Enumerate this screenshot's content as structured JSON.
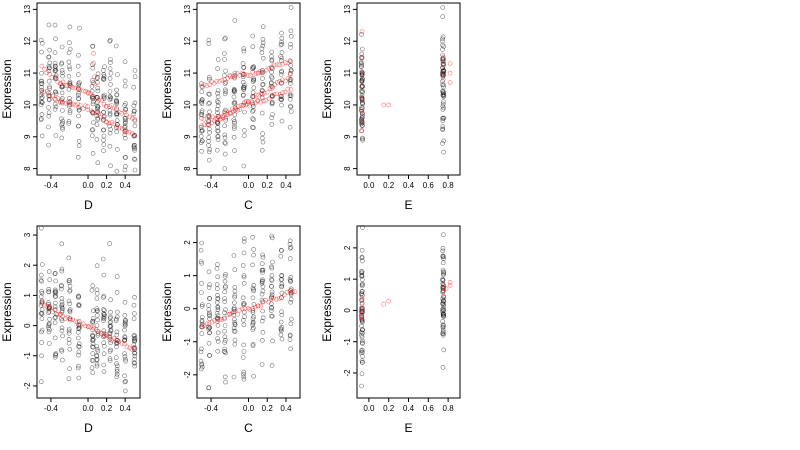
{
  "chart_data": [
    {
      "type": "scatter",
      "xlabel": "D",
      "ylabel": "Expression",
      "xlim": [
        -0.55,
        0.56
      ],
      "ylim": [
        7.8,
        13.2
      ],
      "xticks": [
        -0.4,
        0.0,
        0.2,
        0.4
      ],
      "xtick_labels": [
        "-0.4",
        "0.0",
        "0.2",
        "0.4"
      ],
      "yticks": [
        8,
        9,
        10,
        11,
        12,
        13
      ],
      "ytick_labels": [
        "8",
        "9",
        "10",
        "11",
        "12",
        "13"
      ],
      "series": [
        {
          "color": "#000000",
          "style": "open-circle",
          "x_columns": [
            -0.5,
            -0.42,
            -0.35,
            -0.28,
            -0.2,
            -0.1,
            0.05,
            0.1,
            0.17,
            0.24,
            0.31,
            0.4,
            0.5
          ],
          "y_center": [
            10.9,
            10.8,
            10.6,
            10.4,
            10.3,
            10.2,
            10.2,
            10.0,
            9.9,
            9.8,
            9.6,
            9.4,
            9.3
          ],
          "spread": 1.1,
          "points_per_column": 22
        },
        {
          "color": "#ff0000",
          "style": "open-circle",
          "curves": [
            [
              [
                -0.5,
                11.2
              ],
              [
                -0.3,
                10.7
              ],
              [
                0.0,
                10.4
              ],
              [
                0.2,
                10.0
              ],
              [
                0.5,
                9.6
              ]
            ],
            [
              [
                -0.5,
                10.5
              ],
              [
                -0.3,
                10.1
              ],
              [
                0.0,
                9.9
              ],
              [
                0.2,
                9.5
              ],
              [
                0.5,
                9.0
              ]
            ],
            [
              [
                0.06,
                11.6
              ],
              [
                0.07,
                10.6
              ]
            ]
          ]
        }
      ]
    },
    {
      "type": "scatter",
      "xlabel": "C",
      "ylabel": "Expression",
      "xlim": [
        -0.55,
        0.55
      ],
      "ylim": [
        7.8,
        13.2
      ],
      "xticks": [
        -0.4,
        0.0,
        0.2,
        0.4
      ],
      "xtick_labels": [
        "-0.4",
        "0.0",
        "0.2",
        "0.4"
      ],
      "yticks": [
        8,
        9,
        10,
        11,
        12,
        13
      ],
      "ytick_labels": [
        "8",
        "9",
        "10",
        "11",
        "12",
        "13"
      ],
      "series": [
        {
          "color": "#000000",
          "style": "open-circle",
          "x_columns": [
            -0.5,
            -0.42,
            -0.33,
            -0.25,
            -0.15,
            -0.05,
            0.05,
            0.15,
            0.25,
            0.35,
            0.45
          ],
          "y_center": [
            9.5,
            9.8,
            10.0,
            10.1,
            10.2,
            10.3,
            10.4,
            10.6,
            10.7,
            10.9,
            11.0
          ],
          "spread": 1.1,
          "points_per_column": 22
        },
        {
          "color": "#ff0000",
          "style": "open-circle",
          "curves": [
            [
              [
                -0.5,
                10.6
              ],
              [
                -0.2,
                10.9
              ],
              [
                0.1,
                11.0
              ],
              [
                0.45,
                11.4
              ]
            ],
            [
              [
                -0.5,
                9.3
              ],
              [
                -0.2,
                9.8
              ],
              [
                0.1,
                10.1
              ],
              [
                0.45,
                10.5
              ]
            ],
            [
              [
                -0.5,
                9.6
              ],
              [
                -0.3,
                9.6
              ],
              [
                0.0,
                10.1
              ],
              [
                0.45,
                10.9
              ]
            ]
          ]
        }
      ]
    },
    {
      "type": "scatter",
      "xlabel": "E",
      "ylabel": "Expression",
      "xlim": [
        -0.12,
        0.92
      ],
      "ylim": [
        7.8,
        13.2
      ],
      "xticks": [
        0.0,
        0.2,
        0.4,
        0.6,
        0.8
      ],
      "xtick_labels": [
        "0.0",
        "0.2",
        "0.4",
        "0.6",
        "0.8"
      ],
      "yticks": [
        8,
        9,
        10,
        11,
        12,
        13
      ],
      "ytick_labels": [
        "8",
        "9",
        "10",
        "11",
        "12",
        "13"
      ],
      "series": [
        {
          "color": "#000000",
          "style": "open-circle",
          "x_columns": [
            -0.07,
            0.75
          ],
          "y_center": [
            10.4,
            11.0
          ],
          "spread": 1.3,
          "points_per_column": 60
        },
        {
          "color": "#ff0000",
          "style": "open-circle",
          "points": [
            [
              -0.07,
              12.3
            ],
            [
              -0.07,
              11.5
            ],
            [
              -0.07,
              11.0
            ],
            [
              -0.07,
              10.6
            ],
            [
              -0.07,
              10.2
            ],
            [
              -0.07,
              9.8
            ],
            [
              -0.07,
              9.5
            ],
            [
              -0.07,
              9.2
            ],
            [
              0.15,
              10.0
            ],
            [
              0.2,
              10.0
            ],
            [
              0.75,
              10.8
            ],
            [
              0.75,
              11.0
            ],
            [
              0.75,
              11.3
            ],
            [
              0.82,
              11.3
            ],
            [
              0.82,
              11.0
            ],
            [
              0.82,
              10.7
            ],
            [
              0.75,
              11.5
            ]
          ]
        }
      ]
    },
    {
      "type": "scatter",
      "xlabel": "D",
      "ylabel": "Expression",
      "xlim": [
        -0.55,
        0.56
      ],
      "ylim": [
        -2.4,
        3.3
      ],
      "xticks": [
        -0.4,
        0.0,
        0.2,
        0.4
      ],
      "xtick_labels": [
        "-0.4",
        "0.0",
        "0.2",
        "0.4"
      ],
      "yticks": [
        -2,
        -1,
        0,
        1,
        2,
        3
      ],
      "ytick_labels": [
        "-2",
        "-1",
        "0",
        "1",
        "2",
        "3"
      ],
      "series": [
        {
          "color": "#000000",
          "style": "open-circle",
          "x_columns": [
            -0.5,
            -0.42,
            -0.35,
            -0.28,
            -0.2,
            -0.1,
            0.05,
            0.1,
            0.17,
            0.24,
            0.31,
            0.4,
            0.5
          ],
          "y_center": [
            0.6,
            0.5,
            0.4,
            0.3,
            0.2,
            0.1,
            0.0,
            -0.1,
            -0.2,
            -0.3,
            -0.4,
            -0.5,
            -0.6
          ],
          "spread": 1.2,
          "points_per_column": 22
        },
        {
          "color": "#ff0000",
          "style": "open-circle",
          "curves": [
            [
              [
                -0.5,
                0.75
              ],
              [
                -0.3,
                0.35
              ],
              [
                0.0,
                -0.05
              ],
              [
                0.2,
                -0.35
              ],
              [
                0.5,
                -0.8
              ]
            ]
          ]
        }
      ]
    },
    {
      "type": "scatter",
      "xlabel": "C",
      "ylabel": "Expression",
      "xlim": [
        -0.55,
        0.55
      ],
      "ylim": [
        -2.7,
        2.5
      ],
      "xticks": [
        -0.4,
        0.0,
        0.2,
        0.4
      ],
      "xtick_labels": [
        "-0.4",
        "0.0",
        "0.2",
        "0.4"
      ],
      "yticks": [
        -2,
        -1,
        0,
        1,
        2
      ],
      "ytick_labels": [
        "-2",
        "-1",
        "0",
        "1",
        "2"
      ],
      "series": [
        {
          "color": "#000000",
          "style": "open-circle",
          "x_columns": [
            -0.5,
            -0.42,
            -0.33,
            -0.25,
            -0.15,
            -0.05,
            0.05,
            0.15,
            0.25,
            0.35,
            0.45
          ],
          "y_center": [
            -0.5,
            -0.4,
            -0.3,
            -0.2,
            -0.1,
            0.0,
            0.1,
            0.2,
            0.3,
            0.4,
            0.5
          ],
          "spread": 1.2,
          "points_per_column": 22
        },
        {
          "color": "#ff0000",
          "style": "open-circle",
          "curves": [
            [
              [
                -0.5,
                -0.55
              ],
              [
                -0.2,
                -0.2
              ],
              [
                0.1,
                0.1
              ],
              [
                0.5,
                0.55
              ]
            ]
          ]
        }
      ]
    },
    {
      "type": "scatter",
      "xlabel": "E",
      "ylabel": "Expression",
      "xlim": [
        -0.12,
        0.92
      ],
      "ylim": [
        -2.8,
        2.7
      ],
      "xticks": [
        0.0,
        0.2,
        0.4,
        0.6,
        0.8
      ],
      "xtick_labels": [
        "0.0",
        "0.2",
        "0.4",
        "0.6",
        "0.8"
      ],
      "yticks": [
        -2,
        -1,
        0,
        1,
        2
      ],
      "ytick_labels": [
        "-2",
        "-1",
        "0",
        "1",
        "2"
      ],
      "series": [
        {
          "color": "#000000",
          "style": "open-circle",
          "x_columns": [
            -0.07,
            0.75
          ],
          "y_center": [
            -0.2,
            0.6
          ],
          "spread": 1.3,
          "points_per_column": 60
        },
        {
          "color": "#ff0000",
          "style": "open-circle",
          "points": [
            [
              -0.07,
              0.4
            ],
            [
              -0.07,
              0.2
            ],
            [
              -0.07,
              0.0
            ],
            [
              -0.07,
              -0.1
            ],
            [
              -0.07,
              -0.2
            ],
            [
              -0.07,
              -0.3
            ],
            [
              0.15,
              0.2
            ],
            [
              0.2,
              0.3
            ],
            [
              0.75,
              0.6
            ],
            [
              0.75,
              0.7
            ],
            [
              0.75,
              0.8
            ],
            [
              0.82,
              0.8
            ],
            [
              0.82,
              0.9
            ],
            [
              0.78,
              0.7
            ]
          ]
        }
      ]
    }
  ]
}
